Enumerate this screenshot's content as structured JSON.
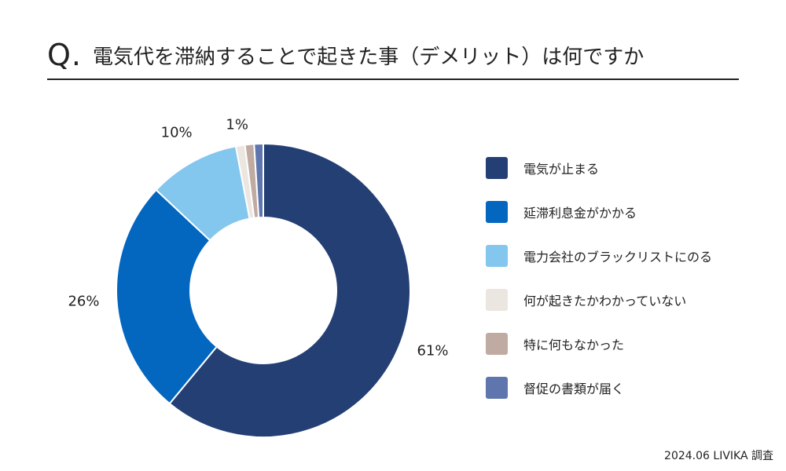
{
  "header": {
    "q": "Q.",
    "title": "電気代を滞納することで起きた事（デメリット）は何ですか"
  },
  "footer": {
    "source": "2024.06 LIVIKA 調査"
  },
  "chart_data": {
    "type": "pie",
    "donut": true,
    "categories": [
      "電気が止まる",
      "延滞利息金がかかる",
      "電力会社のブラックリストにのる",
      "何が起きたかわかっていない",
      "特に何もなかった",
      "督促の書類が届く"
    ],
    "values": [
      61,
      26,
      10,
      1,
      1,
      1
    ],
    "labels": [
      "61%",
      "26%",
      "10%",
      "1%",
      "",
      ""
    ],
    "colors": [
      "#243f74",
      "#0366bf",
      "#83c6ee",
      "#ece6e1",
      "#c0aba3",
      "#5e75ae"
    ],
    "legend_position": "right"
  }
}
